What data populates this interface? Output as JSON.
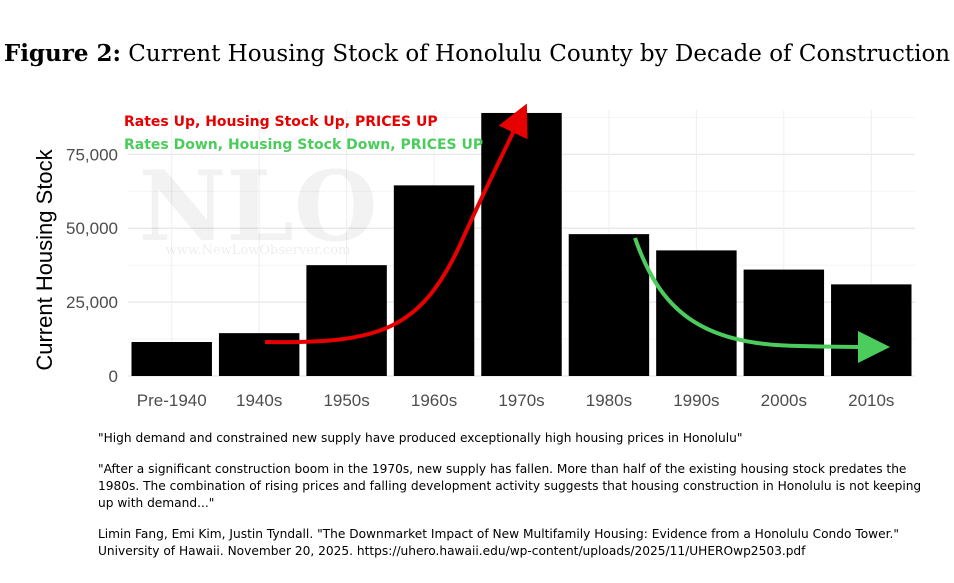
{
  "figure": {
    "label": "Figure 2:",
    "title": "Current Housing Stock of Honolulu County by Decade of Construction"
  },
  "chart_data": {
    "type": "bar",
    "categories": [
      "Pre-1940",
      "1940s",
      "1950s",
      "1960s",
      "1970s",
      "1980s",
      "1990s",
      "2000s",
      "2010s"
    ],
    "values": [
      11500,
      14500,
      37500,
      64500,
      89000,
      48000,
      42500,
      36000,
      31000
    ],
    "ylabel": "Current Housing Stock",
    "xlabel": "",
    "ylim": [
      0,
      90000
    ],
    "yticks": [
      0,
      25000,
      50000,
      75000
    ],
    "ytick_labels": [
      "0",
      "25,000",
      "50,000",
      "75,000"
    ],
    "bar_color": "#000000",
    "grid": true,
    "annotations": [
      {
        "text": "Rates Up, Housing Stock Up, PRICES UP",
        "color": "#e60000"
      },
      {
        "text": "Rates Down, Housing Stock Down, PRICES UP",
        "color": "#4ccc5c"
      }
    ],
    "watermark": {
      "text": "NLO",
      "subtext": "www.NewLowObserver.com"
    }
  },
  "quotes": {
    "q1": "\"High demand and constrained new supply have produced exceptionally high housing prices in Honolulu\"",
    "q2": "\"After a significant construction boom in the 1970s, new supply has fallen. More than half of the existing housing stock predates the 1980s. The combination of rising prices and falling development activity suggests that housing construction in Honolulu is not keeping up with demand...\"",
    "citation": "Limin Fang, Emi Kim, Justin Tyndall. \"The Downmarket Impact of New Multifamily Housing: Evidence from a Honolulu Condo Tower.\" University of Hawaii. November 20, 2025.  https://uhero.hawaii.edu/wp-content/uploads/2025/11/UHEROwp2503.pdf"
  }
}
